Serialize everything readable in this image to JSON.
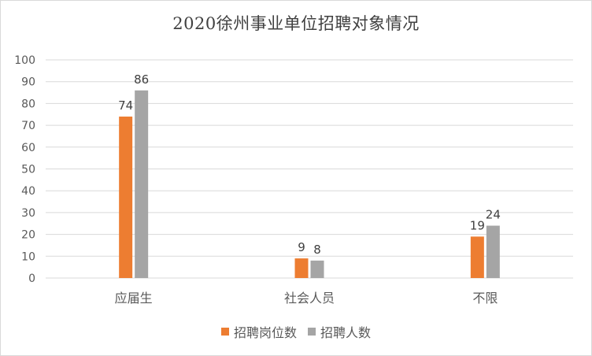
{
  "chart_data": {
    "type": "bar",
    "title": "2020徐州事业单位招聘对象情况",
    "categories": [
      "应届生",
      "社会人员",
      "不限"
    ],
    "series": [
      {
        "name": "招聘岗位数",
        "values": [
          74,
          9,
          19
        ],
        "color": "#ED7D31"
      },
      {
        "name": "招聘人数",
        "values": [
          86,
          8,
          24
        ],
        "color": "#A5A5A5"
      }
    ],
    "ylim": [
      0,
      100
    ],
    "yticks": [
      "0",
      "10",
      "20",
      "30",
      "40",
      "50",
      "60",
      "70",
      "80",
      "90",
      "100"
    ],
    "grid": true,
    "legend_position": "bottom"
  }
}
